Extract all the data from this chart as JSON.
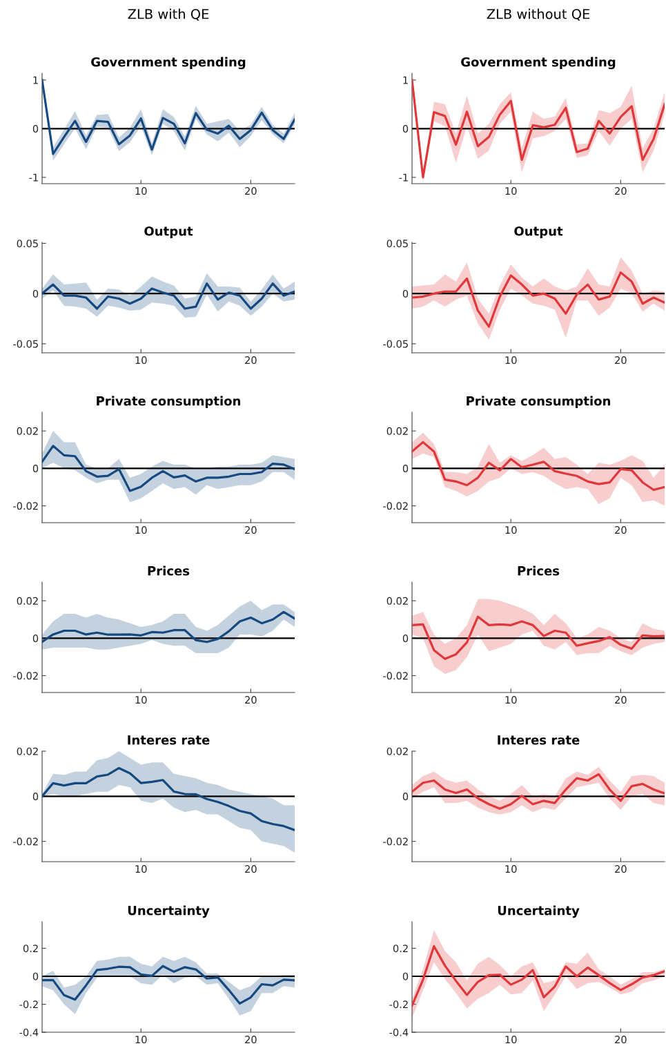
{
  "chart_data": [
    {
      "type": "line",
      "subtitle": "ZLB with QE",
      "title": "Government spending",
      "x": [
        1,
        2,
        3,
        4,
        5,
        6,
        7,
        8,
        9,
        10,
        11,
        12,
        13,
        14,
        15,
        16,
        17,
        18,
        19,
        20,
        21,
        22,
        23,
        24
      ],
      "xlim": [
        1,
        24
      ],
      "xticks": [
        10,
        20
      ],
      "ylim": [
        -1.13,
        1.14
      ],
      "yticks": [
        -1,
        0,
        1
      ],
      "grid": false,
      "ref_lines": [
        {
          "axis": "y",
          "value": 0,
          "color": "#000000"
        }
      ],
      "series": [
        {
          "color": "#15497f",
          "values": [
            1,
            -0.52,
            -0.17,
            0.16,
            -0.27,
            0.16,
            0.14,
            -0.32,
            -0.14,
            0.21,
            -0.43,
            0.22,
            0.1,
            -0.3,
            0.32,
            -0.02,
            -0.1,
            0.06,
            -0.21,
            -0.03,
            0.33,
            -0.03,
            -0.21,
            0.19
          ],
          "lower": [
            1,
            -0.66,
            -0.32,
            0.0,
            -0.42,
            0.04,
            0.02,
            -0.46,
            -0.28,
            0.05,
            -0.55,
            0.1,
            -0.05,
            -0.45,
            0.2,
            -0.12,
            -0.26,
            -0.08,
            -0.38,
            -0.15,
            0.18,
            -0.12,
            -0.3,
            0.08
          ],
          "upper": [
            1,
            -0.38,
            -0.02,
            0.36,
            -0.14,
            0.28,
            0.3,
            -0.18,
            0.02,
            0.4,
            -0.3,
            0.4,
            0.24,
            -0.16,
            0.47,
            0.1,
            0.15,
            0.2,
            -0.04,
            0.08,
            0.45,
            0.08,
            -0.1,
            0.32
          ]
        }
      ]
    },
    {
      "type": "line",
      "subtitle": "ZLB without QE",
      "title": "Government spending",
      "x": [
        1,
        2,
        3,
        4,
        5,
        6,
        7,
        8,
        9,
        10,
        11,
        12,
        13,
        14,
        15,
        16,
        17,
        18,
        19,
        20,
        21,
        22,
        23,
        24
      ],
      "xlim": [
        1,
        24
      ],
      "xticks": [
        10,
        20
      ],
      "ylim": [
        -1.13,
        1.14
      ],
      "yticks": [
        -1,
        0,
        1
      ],
      "grid": false,
      "ref_lines": [
        {
          "axis": "y",
          "value": 0,
          "color": "#000000"
        }
      ],
      "series": [
        {
          "color": "#e0373a",
          "values": [
            1,
            -1.0,
            0.34,
            0.26,
            -0.33,
            0.35,
            -0.36,
            -0.17,
            0.29,
            0.57,
            -0.64,
            0.07,
            0.03,
            0.08,
            0.43,
            -0.48,
            -0.41,
            0.16,
            -0.1,
            0.24,
            0.46,
            -0.64,
            -0.21,
            0.5
          ],
          "lower": [
            1,
            -1.1,
            0.15,
            0.05,
            -0.7,
            0.05,
            -0.62,
            -0.45,
            0.1,
            0.35,
            -0.9,
            -0.2,
            -0.15,
            -0.05,
            0.2,
            -0.6,
            -0.55,
            -0.05,
            -0.35,
            0.0,
            0.2,
            -0.9,
            -0.45,
            0.3
          ],
          "upper": [
            1,
            -0.95,
            0.55,
            0.5,
            -0.1,
            0.68,
            -0.1,
            0.1,
            0.5,
            0.75,
            -0.4,
            0.35,
            0.2,
            0.25,
            0.63,
            -0.32,
            -0.3,
            0.38,
            0.32,
            0.45,
            0.88,
            -0.4,
            0.0,
            0.75
          ]
        }
      ]
    },
    {
      "type": "line",
      "title": "Output",
      "x": [
        1,
        2,
        3,
        4,
        5,
        6,
        7,
        8,
        9,
        10,
        11,
        12,
        13,
        14,
        15,
        16,
        17,
        18,
        19,
        20,
        21,
        22,
        23,
        24
      ],
      "xlim": [
        1,
        24
      ],
      "xticks": [
        10,
        20
      ],
      "ylim": [
        -0.059,
        0.051
      ],
      "yticks": [
        -0.05,
        0,
        0.05
      ],
      "grid": false,
      "ref_lines": [
        {
          "axis": "y",
          "value": 0,
          "color": "#000000"
        }
      ],
      "series": [
        {
          "color": "#15497f",
          "values": [
            0.0,
            0.009,
            -0.002,
            -0.002,
            -0.004,
            -0.015,
            -0.003,
            -0.005,
            -0.01,
            -0.005,
            0.005,
            0.001,
            -0.002,
            -0.015,
            -0.013,
            0.01,
            -0.006,
            0.001,
            -0.002,
            -0.015,
            -0.005,
            0.01,
            -0.002,
            0.002
          ],
          "lower": [
            -0.005,
            0.003,
            -0.012,
            -0.013,
            -0.015,
            -0.023,
            -0.012,
            -0.014,
            -0.017,
            -0.016,
            -0.009,
            -0.01,
            -0.012,
            -0.024,
            -0.023,
            -0.001,
            -0.018,
            -0.008,
            -0.012,
            -0.022,
            -0.013,
            0.0,
            -0.008,
            -0.006
          ],
          "upper": [
            0.005,
            0.019,
            0.009,
            0.01,
            0.011,
            -0.006,
            0.005,
            0.004,
            -0.002,
            0.007,
            0.017,
            0.012,
            0.008,
            -0.005,
            -0.003,
            0.02,
            0.007,
            0.007,
            0.006,
            -0.008,
            0.004,
            0.019,
            0.005,
            0.012
          ]
        }
      ]
    },
    {
      "type": "line",
      "title": "Output",
      "x": [
        1,
        2,
        3,
        4,
        5,
        6,
        7,
        8,
        9,
        10,
        11,
        12,
        13,
        14,
        15,
        16,
        17,
        18,
        19,
        20,
        21,
        22,
        23,
        24
      ],
      "xlim": [
        1,
        24
      ],
      "xticks": [
        10,
        20
      ],
      "ylim": [
        -0.059,
        0.051
      ],
      "yticks": [
        -0.05,
        0,
        0.05
      ],
      "grid": false,
      "ref_lines": [
        {
          "axis": "y",
          "value": 0,
          "color": "#000000"
        }
      ],
      "series": [
        {
          "color": "#e0373a",
          "values": [
            -0.004,
            -0.003,
            0.0,
            0.002,
            0.002,
            0.015,
            -0.017,
            -0.033,
            -0.003,
            0.018,
            0.009,
            -0.002,
            0.0,
            -0.005,
            -0.02,
            -0.001,
            0.009,
            -0.006,
            -0.003,
            0.021,
            0.012,
            -0.01,
            -0.004,
            -0.009
          ],
          "lower": [
            -0.015,
            -0.013,
            -0.007,
            -0.013,
            -0.006,
            -0.002,
            -0.03,
            -0.046,
            -0.016,
            0.005,
            -0.002,
            -0.01,
            -0.012,
            -0.016,
            -0.044,
            -0.007,
            -0.007,
            -0.022,
            -0.014,
            0.005,
            0.0,
            -0.018,
            -0.01,
            -0.017
          ],
          "upper": [
            0.007,
            0.008,
            0.009,
            0.019,
            0.012,
            0.031,
            -0.005,
            -0.02,
            0.008,
            0.029,
            0.016,
            0.007,
            0.015,
            0.007,
            0.003,
            0.007,
            0.025,
            0.009,
            0.007,
            0.036,
            0.023,
            0.0,
            0.003,
            0.002
          ]
        }
      ]
    },
    {
      "type": "line",
      "title": "Private consumption",
      "x": [
        1,
        2,
        3,
        4,
        5,
        6,
        7,
        8,
        9,
        10,
        11,
        12,
        13,
        14,
        15,
        16,
        17,
        18,
        19,
        20,
        21,
        22,
        23,
        24
      ],
      "xlim": [
        1,
        24
      ],
      "xticks": [
        10,
        20
      ],
      "ylim": [
        -0.029,
        0.03
      ],
      "yticks": [
        -0.02,
        0,
        0.02
      ],
      "grid": false,
      "ref_lines": [
        {
          "axis": "y",
          "value": 0,
          "color": "#000000"
        }
      ],
      "series": [
        {
          "color": "#15497f",
          "values": [
            0.0035,
            0.012,
            0.007,
            0.0065,
            -0.0015,
            -0.0044,
            -0.004,
            -0.0004,
            -0.012,
            -0.0098,
            -0.005,
            -0.0015,
            -0.0048,
            -0.0038,
            -0.007,
            -0.005,
            -0.005,
            -0.0044,
            -0.003,
            -0.003,
            -0.002,
            0.0025,
            0.002,
            -0.0004
          ],
          "lower": [
            0.0,
            0.003,
            0.0,
            -0.001,
            -0.005,
            -0.008,
            -0.006,
            -0.006,
            -0.018,
            -0.016,
            -0.012,
            -0.008,
            -0.011,
            -0.01,
            -0.014,
            -0.009,
            -0.011,
            -0.01,
            -0.009,
            -0.009,
            -0.007,
            -0.002,
            -0.002,
            -0.006
          ],
          "upper": [
            0.008,
            0.02,
            0.014,
            0.014,
            0.002,
            0.0,
            0.0,
            0.005,
            -0.005,
            -0.003,
            0.001,
            0.004,
            0.002,
            0.002,
            0.0,
            0.0,
            0.001,
            0.001,
            0.002,
            0.002,
            0.003,
            0.007,
            0.006,
            0.005
          ]
        }
      ]
    },
    {
      "type": "line",
      "title": "Private consumption",
      "x": [
        1,
        2,
        3,
        4,
        5,
        6,
        7,
        8,
        9,
        10,
        11,
        12,
        13,
        14,
        15,
        16,
        17,
        18,
        19,
        20,
        21,
        22,
        23,
        24
      ],
      "xlim": [
        1,
        24
      ],
      "xticks": [
        10,
        20
      ],
      "ylim": [
        -0.029,
        0.03
      ],
      "yticks": [
        -0.02,
        0,
        0.02
      ],
      "grid": false,
      "ref_lines": [
        {
          "axis": "y",
          "value": 0,
          "color": "#000000"
        }
      ],
      "series": [
        {
          "color": "#e0373a",
          "values": [
            0.009,
            0.014,
            0.009,
            -0.006,
            -0.007,
            -0.009,
            -0.005,
            0.003,
            -0.001,
            0.005,
            0.0006,
            0.002,
            0.0035,
            -0.0015,
            -0.0028,
            -0.004,
            -0.007,
            -0.0084,
            -0.0075,
            -0.0004,
            -0.001,
            -0.0075,
            -0.0115,
            -0.01
          ],
          "lower": [
            0.005,
            0.008,
            0.006,
            -0.01,
            -0.012,
            -0.015,
            -0.012,
            -0.007,
            -0.005,
            0.0,
            -0.003,
            -0.002,
            -0.004,
            -0.008,
            -0.011,
            -0.01,
            -0.011,
            -0.019,
            -0.016,
            -0.005,
            -0.009,
            -0.018,
            -0.017,
            -0.02
          ],
          "upper": [
            0.014,
            0.019,
            0.013,
            -0.002,
            -0.002,
            -0.003,
            0.001,
            0.013,
            0.003,
            0.007,
            0.004,
            0.007,
            0.011,
            0.005,
            0.006,
            0.002,
            -0.003,
            0.003,
            0.002,
            0.004,
            0.007,
            0.004,
            -0.005,
            0.002
          ]
        }
      ]
    },
    {
      "type": "line",
      "title": "Prices",
      "x": [
        1,
        2,
        3,
        4,
        5,
        6,
        7,
        8,
        9,
        10,
        11,
        12,
        13,
        14,
        15,
        16,
        17,
        18,
        19,
        20,
        21,
        22,
        23,
        24
      ],
      "xlim": [
        1,
        24
      ],
      "xticks": [
        10,
        20
      ],
      "ylim": [
        -0.029,
        0.03
      ],
      "yticks": [
        -0.02,
        0,
        0.02
      ],
      "grid": false,
      "ref_lines": [
        {
          "axis": "y",
          "value": 0,
          "color": "#000000"
        }
      ],
      "series": [
        {
          "color": "#15497f",
          "values": [
            -0.0019,
            0.002,
            0.004,
            0.004,
            0.002,
            0.003,
            0.0019,
            0.0019,
            0.002,
            0.0015,
            0.0033,
            0.003,
            0.0043,
            0.0043,
            -0.001,
            -0.002,
            -0.0004,
            0.0037,
            0.009,
            0.011,
            0.008,
            0.01,
            0.014,
            0.0105
          ],
          "lower": [
            -0.006,
            -0.005,
            -0.005,
            -0.005,
            -0.005,
            -0.006,
            -0.006,
            -0.005,
            -0.004,
            -0.003,
            -0.001,
            -0.003,
            -0.004,
            -0.004,
            -0.008,
            -0.008,
            -0.008,
            -0.005,
            0.002,
            0.002,
            0.001,
            0.004,
            0.01,
            0.006
          ],
          "upper": [
            0.002,
            0.009,
            0.013,
            0.013,
            0.011,
            0.013,
            0.011,
            0.01,
            0.008,
            0.006,
            0.007,
            0.009,
            0.013,
            0.013,
            0.006,
            0.004,
            0.007,
            0.012,
            0.017,
            0.02,
            0.015,
            0.018,
            0.018,
            0.014
          ]
        }
      ]
    },
    {
      "type": "line",
      "title": "Prices",
      "x": [
        1,
        2,
        3,
        4,
        5,
        6,
        7,
        8,
        9,
        10,
        11,
        12,
        13,
        14,
        15,
        16,
        17,
        18,
        19,
        20,
        21,
        22,
        23,
        24
      ],
      "xlim": [
        1,
        24
      ],
      "xticks": [
        10,
        20
      ],
      "ylim": [
        -0.029,
        0.03
      ],
      "yticks": [
        -0.02,
        0,
        0.02
      ],
      "grid": false,
      "ref_lines": [
        {
          "axis": "y",
          "value": 0,
          "color": "#000000"
        }
      ],
      "series": [
        {
          "color": "#e0373a",
          "values": [
            0.007,
            0.0074,
            -0.0064,
            -0.011,
            -0.0086,
            -0.0022,
            0.0115,
            0.007,
            0.0074,
            0.007,
            0.009,
            0.007,
            0.0012,
            0.004,
            0.003,
            -0.004,
            -0.0027,
            -0.0015,
            0.0006,
            -0.0035,
            -0.0056,
            0.0015,
            0.001,
            0.0012
          ],
          "lower": [
            0.002,
            0.0,
            -0.015,
            -0.019,
            -0.017,
            -0.01,
            0.002,
            -0.007,
            -0.005,
            -0.003,
            0.002,
            0.004,
            -0.004,
            -0.006,
            -0.002,
            -0.009,
            -0.008,
            -0.008,
            -0.004,
            -0.007,
            -0.009,
            -0.005,
            -0.003,
            -0.002
          ],
          "upper": [
            0.012,
            0.014,
            0.002,
            -0.003,
            0.0,
            0.007,
            0.021,
            0.021,
            0.02,
            0.018,
            0.016,
            0.013,
            0.007,
            0.013,
            0.008,
            0.0,
            0.002,
            0.006,
            0.004,
            0.0,
            -0.002,
            0.008,
            0.005,
            0.004
          ]
        }
      ]
    },
    {
      "type": "line",
      "title": "Interes rate",
      "x": [
        1,
        2,
        3,
        4,
        5,
        6,
        7,
        8,
        9,
        10,
        11,
        12,
        13,
        14,
        15,
        16,
        17,
        18,
        19,
        20,
        21,
        22,
        23,
        24
      ],
      "xlim": [
        1,
        24
      ],
      "xticks": [
        10,
        20
      ],
      "ylim": [
        -0.029,
        0.02
      ],
      "yticks": [
        -0.02,
        0,
        0.02
      ],
      "grid": false,
      "ref_lines": [
        {
          "axis": "y",
          "value": 0,
          "color": "#000000"
        }
      ],
      "series": [
        {
          "color": "#15497f",
          "values": [
            0.0,
            0.0058,
            0.0048,
            0.0058,
            0.0058,
            0.0088,
            0.0096,
            0.0125,
            0.0102,
            0.0059,
            0.0064,
            0.0072,
            0.0021,
            0.001,
            0.0009,
            -0.0012,
            -0.0025,
            -0.0043,
            -0.0065,
            -0.0076,
            -0.011,
            -0.0123,
            -0.0132,
            -0.015
          ],
          "lower": [
            0.0,
            0.001,
            0.0,
            0.0,
            0.001,
            0.002,
            0.002,
            0.005,
            0.004,
            -0.002,
            -0.003,
            -0.001,
            -0.005,
            -0.007,
            -0.006,
            -0.008,
            -0.008,
            -0.011,
            -0.014,
            -0.015,
            -0.02,
            -0.021,
            -0.022,
            -0.025
          ],
          "upper": [
            0.001,
            0.01,
            0.0095,
            0.011,
            0.011,
            0.016,
            0.017,
            0.02,
            0.017,
            0.014,
            0.015,
            0.015,
            0.01,
            0.009,
            0.008,
            0.006,
            0.005,
            0.003,
            0.002,
            0.001,
            0.0,
            -0.001,
            -0.004,
            -0.004
          ]
        }
      ]
    },
    {
      "type": "line",
      "title": "Interes rate",
      "x": [
        1,
        2,
        3,
        4,
        5,
        6,
        7,
        8,
        9,
        10,
        11,
        12,
        13,
        14,
        15,
        16,
        17,
        18,
        19,
        20,
        21,
        22,
        23,
        24
      ],
      "xlim": [
        1,
        24
      ],
      "xticks": [
        10,
        20
      ],
      "ylim": [
        -0.029,
        0.02
      ],
      "yticks": [
        -0.02,
        0,
        0.02
      ],
      "grid": false,
      "ref_lines": [
        {
          "axis": "y",
          "value": 0,
          "color": "#000000"
        }
      ],
      "series": [
        {
          "color": "#e0373a",
          "values": [
            0.002,
            0.006,
            0.007,
            0.003,
            0.0015,
            0.003,
            -0.0009,
            -0.0035,
            -0.0055,
            -0.0035,
            0.0002,
            -0.0035,
            -0.002,
            -0.003,
            0.003,
            0.008,
            0.007,
            0.0098,
            0.003,
            -0.002,
            0.0045,
            0.0055,
            0.003,
            0.0013
          ],
          "lower": [
            -0.001,
            0.002,
            0.004,
            -0.003,
            -0.003,
            -0.002,
            -0.005,
            -0.007,
            -0.008,
            -0.007,
            -0.004,
            -0.007,
            -0.005,
            -0.006,
            -0.001,
            0.004,
            0.005,
            0.006,
            -0.001,
            -0.006,
            0.0,
            0.001,
            -0.003,
            -0.004
          ],
          "upper": [
            0.005,
            0.009,
            0.011,
            0.0075,
            0.006,
            0.007,
            0.003,
            0.0,
            -0.002,
            0.001,
            0.005,
            0.0,
            0.001,
            0.0,
            0.008,
            0.011,
            0.0095,
            0.013,
            0.007,
            0.002,
            0.009,
            0.0095,
            0.009,
            0.006
          ]
        }
      ]
    },
    {
      "type": "line",
      "title": "Uncertainty",
      "x": [
        1,
        2,
        3,
        4,
        5,
        6,
        7,
        8,
        9,
        10,
        11,
        12,
        13,
        14,
        15,
        16,
        17,
        18,
        19,
        20,
        21,
        22,
        23,
        24
      ],
      "xlim": [
        1,
        24
      ],
      "xticks": [
        10,
        20
      ],
      "ylim": [
        -0.4,
        0.39
      ],
      "yticks": [
        -0.4,
        -0.2,
        0,
        0.2
      ],
      "grid": false,
      "ref_lines": [
        {
          "axis": "y",
          "value": 0,
          "color": "#000000"
        }
      ],
      "series": [
        {
          "color": "#15497f",
          "values": [
            -0.028,
            -0.028,
            -0.135,
            -0.167,
            -0.065,
            0.045,
            0.054,
            0.068,
            0.065,
            0.013,
            0.003,
            0.073,
            0.033,
            0.065,
            0.049,
            -0.016,
            -0.008,
            -0.098,
            -0.195,
            -0.151,
            -0.057,
            -0.065,
            -0.024,
            -0.029
          ],
          "lower": [
            -0.07,
            -0.1,
            -0.2,
            -0.27,
            -0.12,
            -0.01,
            0.0,
            0.005,
            0.0,
            -0.05,
            -0.06,
            0.01,
            -0.05,
            -0.01,
            0.0,
            -0.06,
            -0.05,
            -0.16,
            -0.28,
            -0.25,
            -0.12,
            -0.12,
            -0.07,
            -0.08
          ],
          "upper": [
            0.0,
            0.04,
            -0.08,
            -0.06,
            0.0,
            0.11,
            0.12,
            0.14,
            0.14,
            0.09,
            0.07,
            0.14,
            0.11,
            0.14,
            0.1,
            0.02,
            0.02,
            -0.04,
            -0.1,
            -0.07,
            0.0,
            0.0,
            0.01,
            0.01
          ]
        }
      ]
    },
    {
      "type": "line",
      "title": "Uncertainty",
      "x": [
        1,
        2,
        3,
        4,
        5,
        6,
        7,
        8,
        9,
        10,
        11,
        12,
        13,
        14,
        15,
        16,
        17,
        18,
        19,
        20,
        21,
        22,
        23,
        24
      ],
      "xlim": [
        1,
        24
      ],
      "xticks": [
        10,
        20
      ],
      "ylim": [
        -0.4,
        0.39
      ],
      "yticks": [
        -0.4,
        -0.2,
        0,
        0.2
      ],
      "grid": false,
      "ref_lines": [
        {
          "axis": "y",
          "value": 0,
          "color": "#000000"
        }
      ],
      "series": [
        {
          "color": "#e0373a",
          "values": [
            -0.21,
            -0.024,
            0.215,
            0.076,
            -0.033,
            -0.133,
            -0.04,
            0.008,
            0.011,
            -0.06,
            -0.024,
            0.044,
            -0.15,
            -0.073,
            0.07,
            0.0,
            0.062,
            0.008,
            -0.049,
            -0.098,
            -0.057,
            -0.008,
            0.008,
            0.036
          ],
          "lower": [
            -0.3,
            -0.1,
            0.1,
            -0.02,
            -0.12,
            -0.23,
            -0.16,
            -0.12,
            -0.06,
            -0.13,
            -0.12,
            -0.03,
            -0.25,
            -0.13,
            0.0,
            -0.09,
            -0.05,
            -0.04,
            -0.08,
            -0.13,
            -0.11,
            -0.05,
            -0.03,
            0.0
          ],
          "upper": [
            -0.16,
            0.05,
            0.33,
            0.18,
            0.1,
            -0.03,
            0.09,
            0.14,
            0.08,
            0.0,
            0.07,
            0.1,
            -0.05,
            -0.03,
            0.1,
            0.09,
            0.17,
            0.05,
            0.0,
            -0.06,
            -0.02,
            0.03,
            0.03,
            0.05
          ]
        }
      ]
    }
  ]
}
